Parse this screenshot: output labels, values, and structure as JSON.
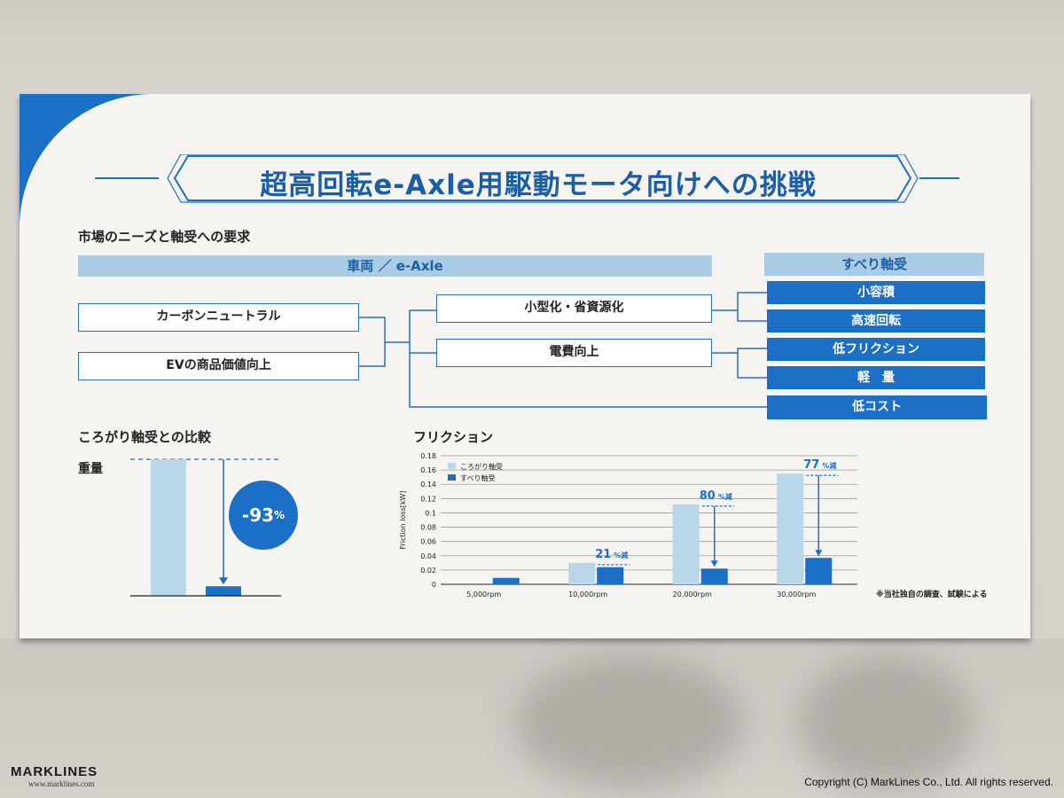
{
  "title": "超高回転e-Axle用駆動モータ向けへの挑戦",
  "needs": {
    "heading": "市場のニーズと軸受への要求",
    "band_left": "車両 ／ e-Axle",
    "band_right": "すべり軸受",
    "left_boxes": [
      "カーボンニュートラル",
      "EVの商品価値向上"
    ],
    "mid_boxes": [
      "小型化・省資源化",
      "電費向上"
    ],
    "right_boxes": [
      "小容積",
      "高速回転",
      "低フリクション",
      "軽　量",
      "低コスト"
    ]
  },
  "weight": {
    "heading": "ころがり軸受との比較",
    "label": "重量",
    "reduction_main": "-93",
    "reduction_unit": "%"
  },
  "friction": {
    "heading": "フリクション",
    "note": "※当社独自の調査、試験による"
  },
  "chart_data": [
    {
      "type": "bar",
      "ylabel": "Friction loss[kW]",
      "xlabel": "",
      "categories": [
        "5,000rpm",
        "10,000rpm",
        "20,000rpm",
        "30,000rpm"
      ],
      "series": [
        {
          "name": "ころがり軸受",
          "values": [
            0,
            0.03,
            0.112,
            0.155
          ]
        },
        {
          "name": "すべり軸受",
          "values": [
            0.009,
            0.024,
            0.022,
            0.037
          ]
        }
      ],
      "yticks": [
        "0",
        "0.02",
        "0.04",
        "0.06",
        "0.08",
        "0.1",
        "0.12",
        "0.14",
        "0.16",
        "0.18"
      ],
      "ylim": [
        0,
        0.18
      ],
      "annotations": [
        {
          "category": "10,000rpm",
          "value": "21",
          "unit": "%減"
        },
        {
          "category": "20,000rpm",
          "value": "80",
          "unit": "%減"
        },
        {
          "category": "30,000rpm",
          "value": "77",
          "unit": "%減"
        }
      ],
      "grid": true,
      "legend": "top-left",
      "colors": {
        "rolling": "#b9d6ea",
        "sliding": "#1c6fc6"
      }
    },
    {
      "type": "bar",
      "categories": [
        "ころがり軸受",
        "すべり軸受"
      ],
      "values": [
        100,
        7
      ],
      "annotations": [
        {
          "text": "-93%"
        }
      ]
    }
  ],
  "watermark": {
    "brand": "MARKLINES",
    "url": "www.marklines.com",
    "copyright": "Copyright (C) MarkLines Co., Ltd. All rights reserved."
  }
}
